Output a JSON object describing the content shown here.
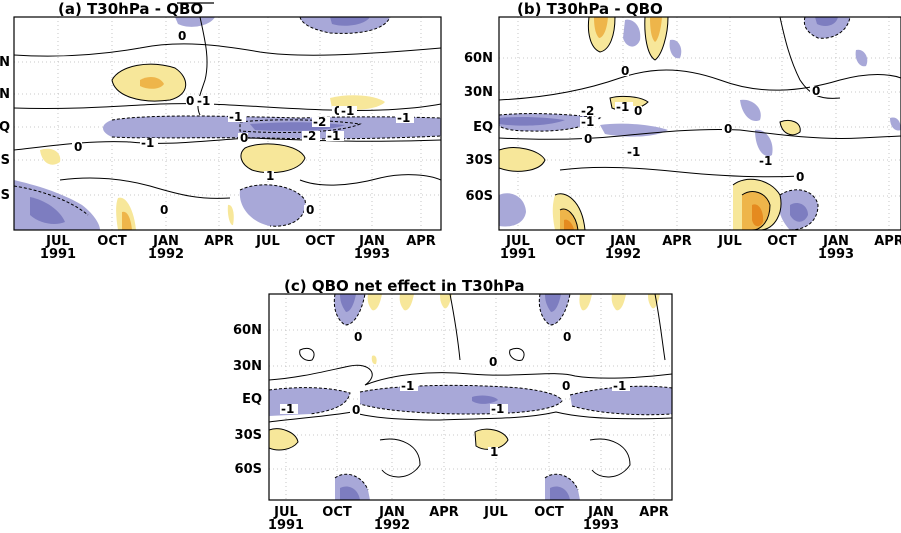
{
  "colors": {
    "negative": "#a8a8d8",
    "negative_strong": "#7d7dc0",
    "positive": "#f7e79a",
    "positive_strong": "#eeb54a"
  },
  "panels": {
    "a": {
      "title": "(a) T30hPa - QBO"
    },
    "b": {
      "title": "(b) T30hPa - QBO"
    },
    "c": {
      "title": "(c) QBO net effect in T30hPa"
    }
  },
  "y_ticks": [
    "60N",
    "30N",
    "EQ",
    "30S",
    "60S"
  ],
  "x_ticks": [
    {
      "month": "JUL",
      "year": "1991"
    },
    {
      "month": "OCT",
      "year": ""
    },
    {
      "month": "JAN",
      "year": "1992"
    },
    {
      "month": "APR",
      "year": ""
    },
    {
      "month": "JUL",
      "year": ""
    },
    {
      "month": "OCT",
      "year": ""
    },
    {
      "month": "JAN",
      "year": "1993"
    },
    {
      "month": "APR",
      "year": ""
    }
  ],
  "contour_labels": {
    "zero": "0",
    "minus_one": "-1",
    "one": "1",
    "minus_two": "-2"
  }
}
